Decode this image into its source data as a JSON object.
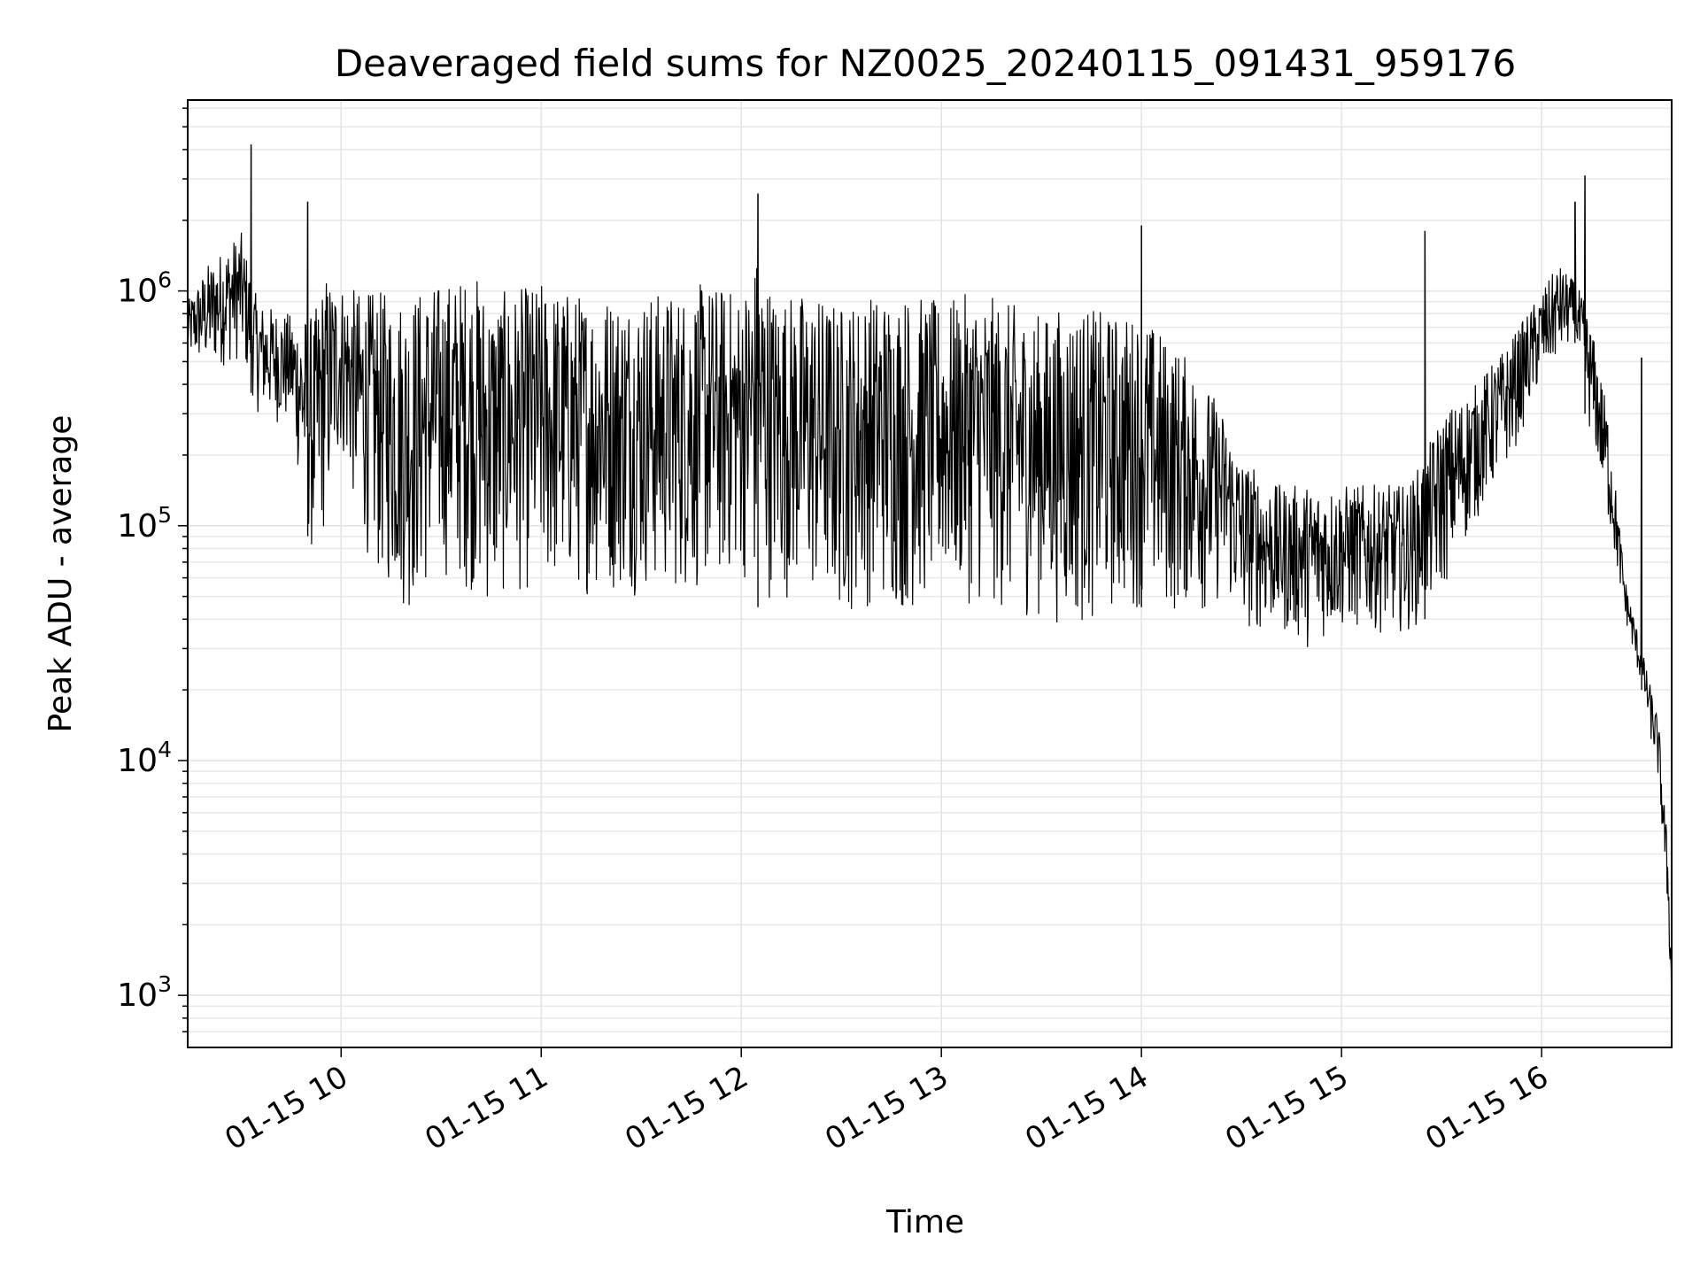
{
  "chart_data": {
    "type": "line",
    "title": "Deaveraged field sums for NZ0025_20240115_091431_959176",
    "xlabel": "Time",
    "ylabel": "Peak ADU - average",
    "y_scale": "log",
    "grid": true,
    "line_color": "#000000",
    "xlim": [
      "2024-01-15 09:14",
      "2024-01-15 16:39"
    ],
    "ylim": [
      600,
      6500000
    ],
    "x_ticks": [
      {
        "label": "01-15 10",
        "value": "2024-01-15 10:00"
      },
      {
        "label": "01-15 11",
        "value": "2024-01-15 11:00"
      },
      {
        "label": "01-15 12",
        "value": "2024-01-15 12:00"
      },
      {
        "label": "01-15 13",
        "value": "2024-01-15 13:00"
      },
      {
        "label": "01-15 14",
        "value": "2024-01-15 14:00"
      },
      {
        "label": "01-15 15",
        "value": "2024-01-15 15:00"
      },
      {
        "label": "01-15 16",
        "value": "2024-01-15 16:00"
      }
    ],
    "y_ticks": [
      {
        "base": "10",
        "exp": "3",
        "value": 1000
      },
      {
        "base": "10",
        "exp": "4",
        "value": 10000
      },
      {
        "base": "10",
        "exp": "5",
        "value": 100000
      },
      {
        "base": "10",
        "exp": "6",
        "value": 1000000
      }
    ],
    "series": [
      {
        "x": [
          "09:14",
          "09:20",
          "09:30",
          "09:35",
          "09:45",
          "09:52",
          "09:55",
          "10:00",
          "10:05",
          "10:10",
          "10:15",
          "10:20",
          "10:30",
          "10:40",
          "10:45",
          "10:50",
          "11:00",
          "11:10",
          "11:20",
          "11:30",
          "11:40",
          "11:50",
          "12:00",
          "12:05",
          "12:10",
          "12:20",
          "12:30",
          "12:40",
          "12:50",
          "13:00",
          "13:10",
          "13:20",
          "13:30",
          "13:40",
          "13:50",
          "14:00",
          "14:10",
          "14:15",
          "14:20",
          "14:25",
          "14:30",
          "14:40",
          "14:50",
          "15:00",
          "15:10",
          "15:20",
          "15:25",
          "15:30",
          "15:40",
          "15:50",
          "16:00",
          "16:05",
          "16:10",
          "16:13",
          "16:16",
          "16:20",
          "16:25",
          "16:30",
          "16:35",
          "16:38",
          "16:39"
        ],
        "low": [
          500000,
          450000,
          500000,
          300000,
          250000,
          60000,
          90000,
          200000,
          100000,
          60000,
          50000,
          40000,
          60000,
          50000,
          40000,
          50000,
          50000,
          50000,
          50000,
          50000,
          50000,
          50000,
          60000,
          45000,
          50000,
          45000,
          40000,
          45000,
          40000,
          50000,
          45000,
          40000,
          40000,
          35000,
          40000,
          45000,
          40000,
          45000,
          40000,
          50000,
          35000,
          35000,
          30000,
          35000,
          35000,
          35000,
          40000,
          50000,
          100000,
          180000,
          400000,
          500000,
          600000,
          300000,
          200000,
          100000,
          40000,
          20000,
          8000,
          2000,
          800
        ],
        "high": [
          900000,
          1300000,
          1800000,
          900000,
          800000,
          800000,
          1200000,
          1100000,
          1000000,
          1000000,
          1000000,
          1000000,
          1100000,
          1200000,
          1000000,
          1000000,
          1100000,
          1000000,
          1000000,
          1000000,
          1000000,
          1100000,
          1000000,
          1500000,
          1000000,
          1000000,
          900000,
          1000000,
          1000000,
          900000,
          1000000,
          900000,
          800000,
          900000,
          800000,
          800000,
          600000,
          500000,
          400000,
          300000,
          200000,
          150000,
          150000,
          150000,
          150000,
          150000,
          200000,
          300000,
          400000,
          600000,
          1000000,
          1300000,
          1100000,
          900000,
          600000,
          300000,
          60000,
          30000,
          15000,
          4000,
          1200
        ],
        "spikes": [
          {
            "x": "09:33",
            "y": 4200000
          },
          {
            "x": "09:50",
            "y": 2400000
          },
          {
            "x": "12:05",
            "y": 2600000
          },
          {
            "x": "14:00",
            "y": 1900000
          },
          {
            "x": "15:25",
            "y": 1800000
          },
          {
            "x": "16:10",
            "y": 2400000
          },
          {
            "x": "16:13",
            "y": 3100000
          },
          {
            "x": "16:30",
            "y": 520000
          }
        ]
      }
    ]
  }
}
